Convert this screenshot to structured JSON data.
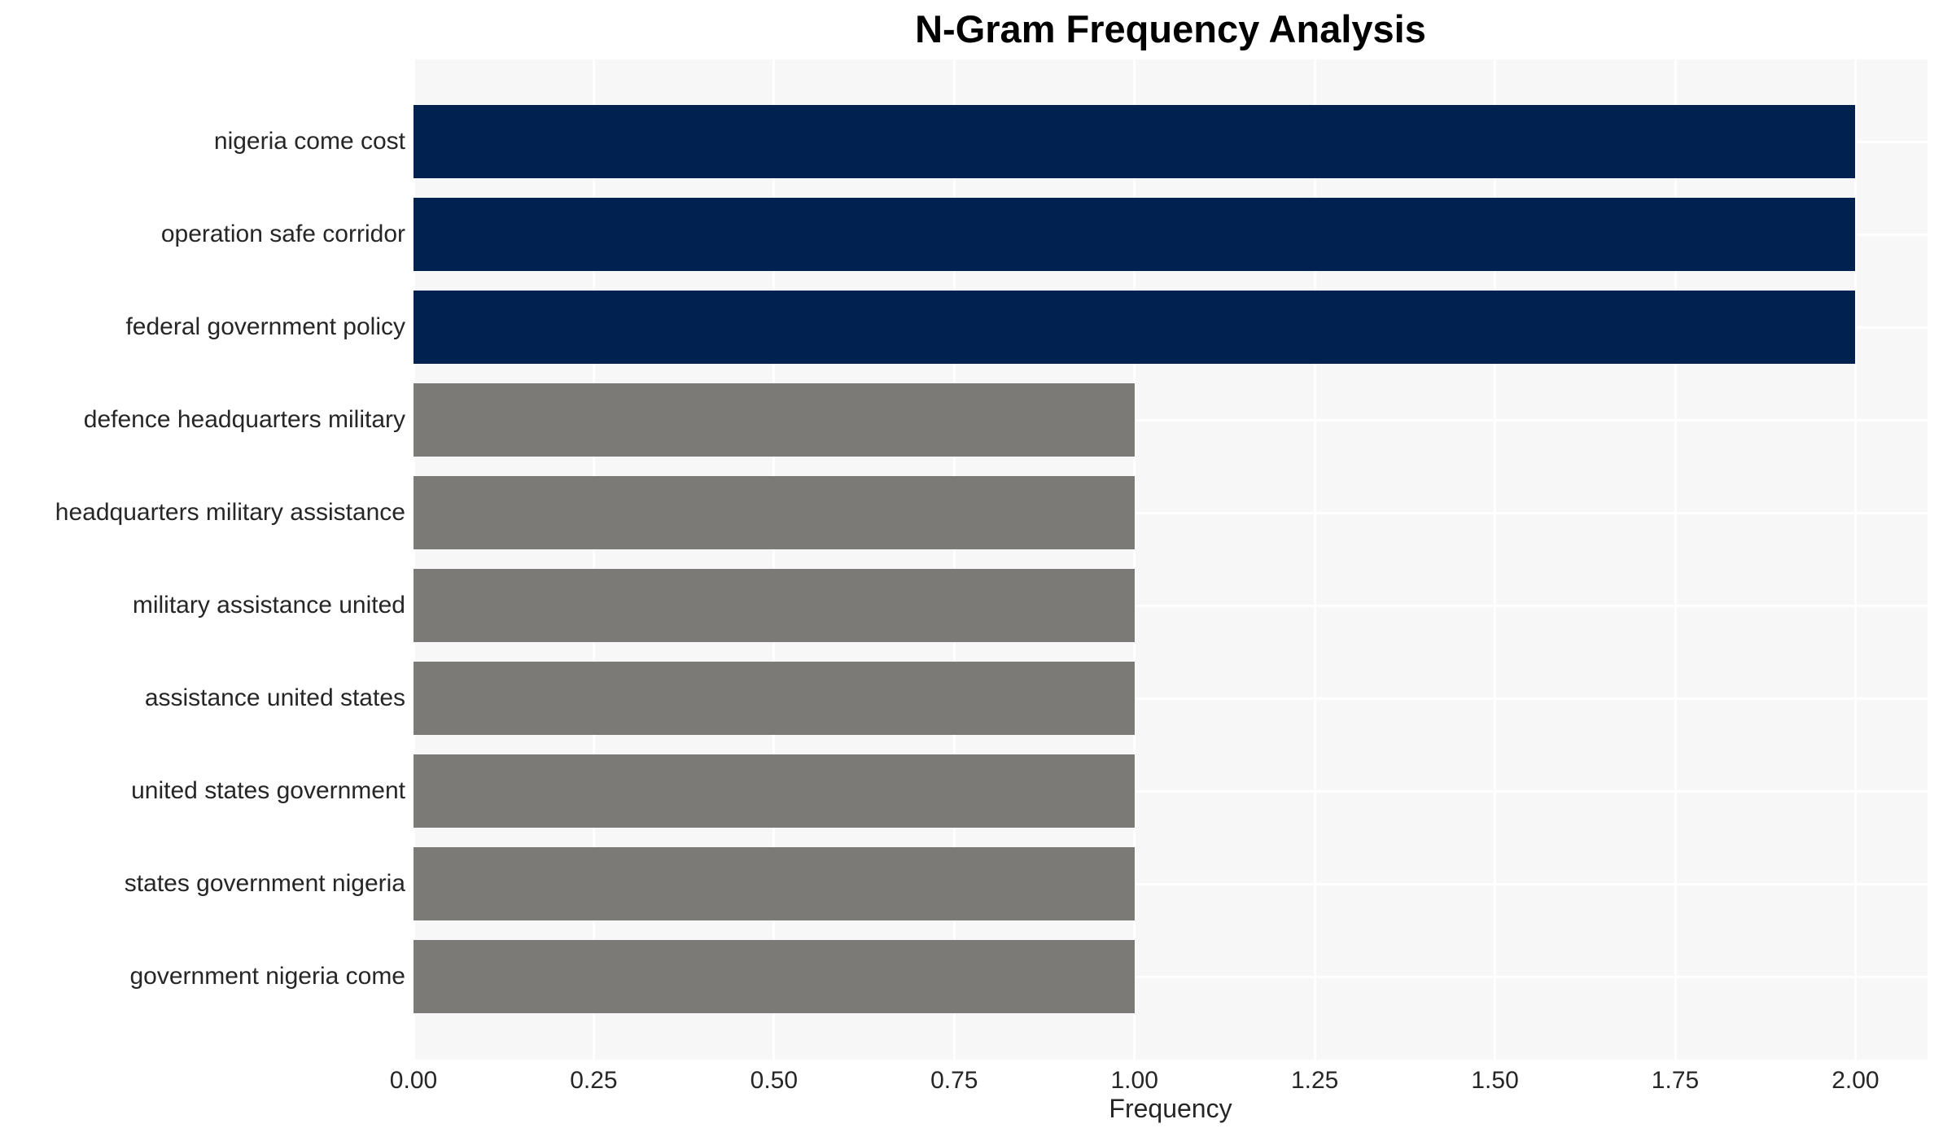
{
  "title": "N-Gram Frequency Analysis",
  "colors": {
    "bar_highlight": "#012250",
    "bar_base": "#7b7a76",
    "plot_background": "#f7f7f7",
    "gridline": "#ffffff",
    "tick_text": "#262626",
    "title_text": "#000000"
  },
  "chart_data": {
    "type": "bar",
    "orientation": "horizontal",
    "title": "N-Gram Frequency Analysis",
    "xlabel": "Frequency",
    "ylabel": "",
    "categories": [
      "nigeria come cost",
      "operation safe corridor",
      "federal government policy",
      "defence headquarters military",
      "headquarters military assistance",
      "military assistance united",
      "assistance united states",
      "united states government",
      "states government nigeria",
      "government nigeria come"
    ],
    "values": [
      2,
      2,
      2,
      1,
      1,
      1,
      1,
      1,
      1,
      1
    ],
    "bar_colors": [
      "#012250",
      "#012250",
      "#012250",
      "#7b7a76",
      "#7b7a76",
      "#7b7a76",
      "#7b7a76",
      "#7b7a76",
      "#7b7a76",
      "#7b7a76"
    ],
    "xlim": [
      0,
      2.1
    ],
    "xticks": [
      0.0,
      0.25,
      0.5,
      0.75,
      1.0,
      1.25,
      1.5,
      1.75,
      2.0
    ],
    "xtick_labels": [
      "0.00",
      "0.25",
      "0.50",
      "0.75",
      "1.00",
      "1.25",
      "1.50",
      "1.75",
      "2.00"
    ],
    "grid": true,
    "legend": false
  }
}
